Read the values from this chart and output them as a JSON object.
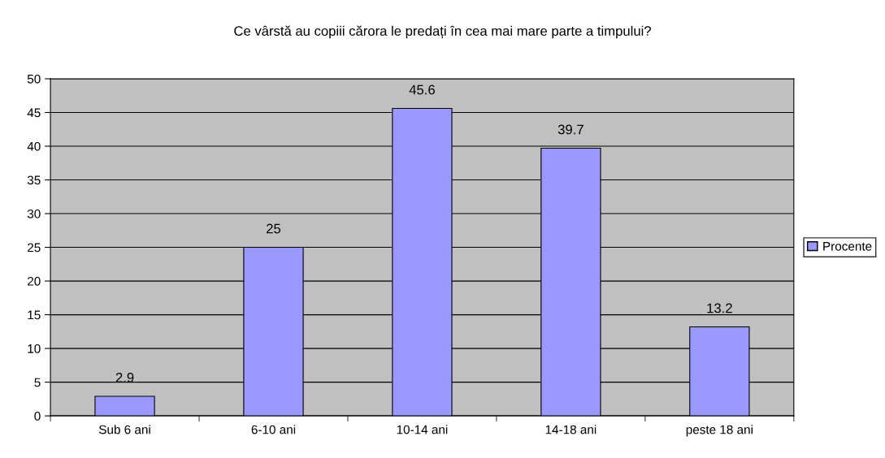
{
  "chart_data": {
    "type": "bar",
    "title": "Ce vârstă au copiii cărora le predați în cea mai mare parte a timpului?",
    "categories": [
      "Sub 6 ani",
      "6-10 ani",
      "10-14 ani",
      "14-18 ani",
      "peste 18 ani"
    ],
    "series": [
      {
        "name": "Procente",
        "color": "#9999ff",
        "values": [
          2.9,
          25,
          45.6,
          39.7,
          13.2
        ]
      }
    ],
    "ylim": [
      0,
      50
    ],
    "yticks": [
      0,
      5,
      10,
      15,
      20,
      25,
      30,
      35,
      40,
      45,
      50
    ],
    "grid": "y",
    "legend": "right",
    "data_labels": true
  }
}
